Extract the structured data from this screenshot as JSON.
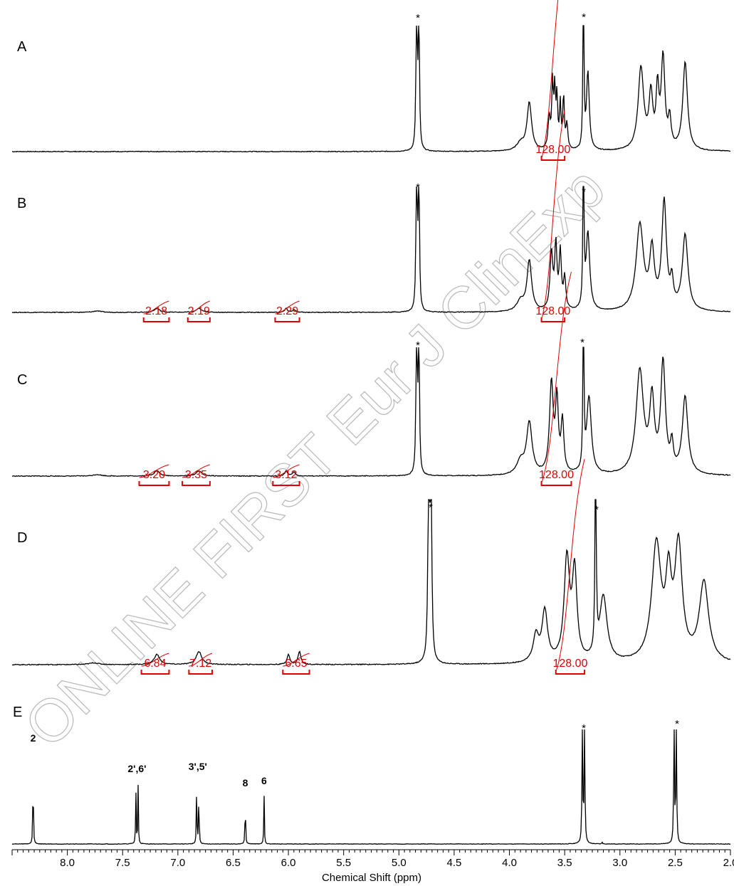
{
  "watermark": "ONLINE FIRST Eur J ClinExp",
  "colors": {
    "spectrum": "#000000",
    "integral": "#e00000",
    "watermark": "#b8b8b8"
  },
  "chart_data": {
    "type": "line",
    "xlabel": "Chemical Shift (ppm)",
    "xlim": [
      8.5,
      2.0
    ],
    "x_reversed": true,
    "x_ticks": [
      "8.0",
      "7.5",
      "7.0",
      "6.5",
      "6.0",
      "5.5",
      "5.0",
      "4.5",
      "4.0",
      "3.5",
      "3.0",
      "2.5",
      "2.0"
    ],
    "x_tick_values": [
      8.0,
      7.5,
      7.0,
      6.5,
      6.0,
      5.5,
      5.0,
      4.5,
      4.0,
      3.5,
      3.0,
      2.5,
      2.0
    ],
    "minor_tick_step": 0.05,
    "panels": [
      {
        "label": "A",
        "solvent_markers": [
          {
            "ppm": 4.83,
            "label": "*"
          },
          {
            "ppm": 3.33,
            "label": "*"
          }
        ],
        "peaks": [
          {
            "ppm": 4.84,
            "h": 1.3,
            "w": 0.006
          },
          {
            "ppm": 4.82,
            "h": 1.3,
            "w": 0.006
          },
          {
            "ppm": 3.9,
            "h": 0.06,
            "w": 0.04
          },
          {
            "ppm": 3.82,
            "h": 0.38,
            "w": 0.025
          },
          {
            "ppm": 3.64,
            "h": 0.25,
            "w": 0.012
          },
          {
            "ppm": 3.61,
            "h": 0.5,
            "w": 0.008
          },
          {
            "ppm": 3.59,
            "h": 0.45,
            "w": 0.008
          },
          {
            "ppm": 3.57,
            "h": 0.4,
            "w": 0.008
          },
          {
            "ppm": 3.54,
            "h": 0.35,
            "w": 0.008
          },
          {
            "ppm": 3.51,
            "h": 0.42,
            "w": 0.008
          },
          {
            "ppm": 3.48,
            "h": 0.2,
            "w": 0.01
          },
          {
            "ppm": 3.33,
            "h": 1.5,
            "w": 0.005
          },
          {
            "ppm": 3.29,
            "h": 0.62,
            "w": 0.015
          },
          {
            "ppm": 2.81,
            "h": 0.65,
            "w": 0.03
          },
          {
            "ppm": 2.72,
            "h": 0.42,
            "w": 0.02
          },
          {
            "ppm": 2.66,
            "h": 0.45,
            "w": 0.015
          },
          {
            "ppm": 2.61,
            "h": 0.72,
            "w": 0.02
          },
          {
            "ppm": 2.55,
            "h": 0.22,
            "w": 0.015
          },
          {
            "ppm": 2.41,
            "h": 0.7,
            "w": 0.025
          }
        ],
        "integrals": [
          {
            "from": 3.71,
            "to": 3.5,
            "value": "128.00"
          }
        ]
      },
      {
        "label": "B",
        "solvent_markers": [
          {
            "ppm": 4.83,
            "label": "*"
          },
          {
            "ppm": 3.33,
            "label": "*"
          }
        ],
        "peaks": [
          {
            "ppm": 7.73,
            "h": 0.012,
            "w": 0.04
          },
          {
            "ppm": 7.19,
            "h": 0.03,
            "w": 0.03
          },
          {
            "ppm": 6.81,
            "h": 0.03,
            "w": 0.03
          },
          {
            "ppm": 6.02,
            "h": 0.03,
            "w": 0.015
          },
          {
            "ppm": 5.95,
            "h": 0.02,
            "w": 0.015
          },
          {
            "ppm": 4.84,
            "h": 1.3,
            "w": 0.006
          },
          {
            "ppm": 4.82,
            "h": 1.3,
            "w": 0.006
          },
          {
            "ppm": 3.9,
            "h": 0.08,
            "w": 0.04
          },
          {
            "ppm": 3.82,
            "h": 0.4,
            "w": 0.025
          },
          {
            "ppm": 3.62,
            "h": 0.45,
            "w": 0.015
          },
          {
            "ppm": 3.58,
            "h": 0.5,
            "w": 0.012
          },
          {
            "ppm": 3.54,
            "h": 0.45,
            "w": 0.012
          },
          {
            "ppm": 3.5,
            "h": 0.25,
            "w": 0.012
          },
          {
            "ppm": 3.33,
            "h": 1.5,
            "w": 0.005
          },
          {
            "ppm": 3.29,
            "h": 0.62,
            "w": 0.02
          },
          {
            "ppm": 2.82,
            "h": 0.68,
            "w": 0.04
          },
          {
            "ppm": 2.71,
            "h": 0.45,
            "w": 0.025
          },
          {
            "ppm": 2.6,
            "h": 0.85,
            "w": 0.025
          },
          {
            "ppm": 2.53,
            "h": 0.2,
            "w": 0.015
          },
          {
            "ppm": 2.41,
            "h": 0.6,
            "w": 0.03
          }
        ],
        "integrals": [
          {
            "from": 7.31,
            "to": 7.08,
            "value": "2.18"
          },
          {
            "from": 6.91,
            "to": 6.71,
            "value": "2.19"
          },
          {
            "from": 6.12,
            "to": 5.9,
            "value": "2.29"
          },
          {
            "from": 3.71,
            "to": 3.5,
            "value": "128.00"
          }
        ]
      },
      {
        "label": "C",
        "solvent_markers": [
          {
            "ppm": 4.83,
            "label": "*"
          },
          {
            "ppm": 3.33,
            "label": "*"
          }
        ],
        "peaks": [
          {
            "ppm": 7.73,
            "h": 0.012,
            "w": 0.04
          },
          {
            "ppm": 7.19,
            "h": 0.04,
            "w": 0.03
          },
          {
            "ppm": 6.81,
            "h": 0.04,
            "w": 0.03
          },
          {
            "ppm": 6.02,
            "h": 0.04,
            "w": 0.015
          },
          {
            "ppm": 5.95,
            "h": 0.03,
            "w": 0.015
          },
          {
            "ppm": 4.84,
            "h": 1.3,
            "w": 0.006
          },
          {
            "ppm": 4.82,
            "h": 1.3,
            "w": 0.006
          },
          {
            "ppm": 3.9,
            "h": 0.1,
            "w": 0.04
          },
          {
            "ppm": 3.82,
            "h": 0.4,
            "w": 0.03
          },
          {
            "ppm": 3.62,
            "h": 0.7,
            "w": 0.02
          },
          {
            "ppm": 3.57,
            "h": 0.55,
            "w": 0.015
          },
          {
            "ppm": 3.52,
            "h": 0.4,
            "w": 0.015
          },
          {
            "ppm": 3.33,
            "h": 1.5,
            "w": 0.005
          },
          {
            "ppm": 3.28,
            "h": 0.6,
            "w": 0.025
          },
          {
            "ppm": 2.82,
            "h": 0.8,
            "w": 0.04
          },
          {
            "ppm": 2.71,
            "h": 0.55,
            "w": 0.025
          },
          {
            "ppm": 2.61,
            "h": 0.85,
            "w": 0.025
          },
          {
            "ppm": 2.53,
            "h": 0.2,
            "w": 0.015
          },
          {
            "ppm": 2.41,
            "h": 0.6,
            "w": 0.03
          }
        ],
        "integrals": [
          {
            "from": 7.35,
            "to": 7.08,
            "value": "3.20"
          },
          {
            "from": 6.96,
            "to": 6.71,
            "value": "3.35"
          },
          {
            "from": 6.14,
            "to": 5.9,
            "value": "3.12"
          },
          {
            "from": 3.71,
            "to": 3.44,
            "value": "128.00"
          }
        ]
      },
      {
        "label": "D",
        "solvent_markers": [
          {
            "ppm": 4.72,
            "label": "*"
          },
          {
            "ppm": 3.22,
            "label": "*"
          }
        ],
        "peaks": [
          {
            "ppm": 7.76,
            "h": 0.012,
            "w": 0.05
          },
          {
            "ppm": 7.19,
            "h": 0.07,
            "w": 0.03
          },
          {
            "ppm": 6.81,
            "h": 0.09,
            "w": 0.03
          },
          {
            "ppm": 6.0,
            "h": 0.07,
            "w": 0.015
          },
          {
            "ppm": 5.9,
            "h": 0.09,
            "w": 0.015
          },
          {
            "ppm": 4.73,
            "h": 1.4,
            "w": 0.008
          },
          {
            "ppm": 4.71,
            "h": 1.4,
            "w": 0.008
          },
          {
            "ppm": 3.76,
            "h": 0.18,
            "w": 0.03
          },
          {
            "ppm": 3.68,
            "h": 0.35,
            "w": 0.03
          },
          {
            "ppm": 3.48,
            "h": 0.7,
            "w": 0.03
          },
          {
            "ppm": 3.41,
            "h": 0.6,
            "w": 0.025
          },
          {
            "ppm": 3.22,
            "h": 1.5,
            "w": 0.006
          },
          {
            "ppm": 3.15,
            "h": 0.45,
            "w": 0.04
          },
          {
            "ppm": 2.67,
            "h": 0.8,
            "w": 0.05
          },
          {
            "ppm": 2.56,
            "h": 0.5,
            "w": 0.03
          },
          {
            "ppm": 2.47,
            "h": 0.78,
            "w": 0.04
          },
          {
            "ppm": 2.24,
            "h": 0.55,
            "w": 0.05
          }
        ],
        "integrals": [
          {
            "from": 7.33,
            "to": 7.08,
            "value": "6.84"
          },
          {
            "from": 6.9,
            "to": 6.69,
            "value": "7.12"
          },
          {
            "from": 6.05,
            "to": 5.81,
            "value": "6.65"
          },
          {
            "from": 3.58,
            "to": 3.32,
            "value": "128.00"
          }
        ]
      },
      {
        "label": "E",
        "solvent_markers": [
          {
            "ppm": 3.33,
            "label": "*"
          },
          {
            "ppm": 2.5,
            "label": "*"
          }
        ],
        "peaks": [
          {
            "ppm": 8.31,
            "h": 0.9,
            "w": 0.003
          },
          {
            "ppm": 7.38,
            "h": 0.62,
            "w": 0.003
          },
          {
            "ppm": 7.36,
            "h": 0.66,
            "w": 0.003
          },
          {
            "ppm": 6.83,
            "h": 0.66,
            "w": 0.003
          },
          {
            "ppm": 6.81,
            "h": 0.62,
            "w": 0.003
          },
          {
            "ppm": 6.39,
            "h": 0.54,
            "w": 0.003
          },
          {
            "ppm": 6.22,
            "h": 0.56,
            "w": 0.003
          },
          {
            "ppm": 3.34,
            "h": 1.4,
            "w": 0.004
          },
          {
            "ppm": 3.32,
            "h": 1.4,
            "w": 0.004
          },
          {
            "ppm": 3.16,
            "h": 0.02,
            "w": 0.004
          },
          {
            "ppm": 2.51,
            "h": 1.4,
            "w": 0.004
          },
          {
            "ppm": 2.49,
            "h": 1.4,
            "w": 0.004
          }
        ],
        "peak_labels": [
          {
            "ppm": 8.31,
            "label": "2"
          },
          {
            "ppm": 7.37,
            "label": "2',6'"
          },
          {
            "ppm": 6.82,
            "label": "3',5'"
          },
          {
            "ppm": 6.39,
            "label": "8"
          },
          {
            "ppm": 6.22,
            "label": "6"
          }
        ],
        "integrals": []
      }
    ]
  }
}
